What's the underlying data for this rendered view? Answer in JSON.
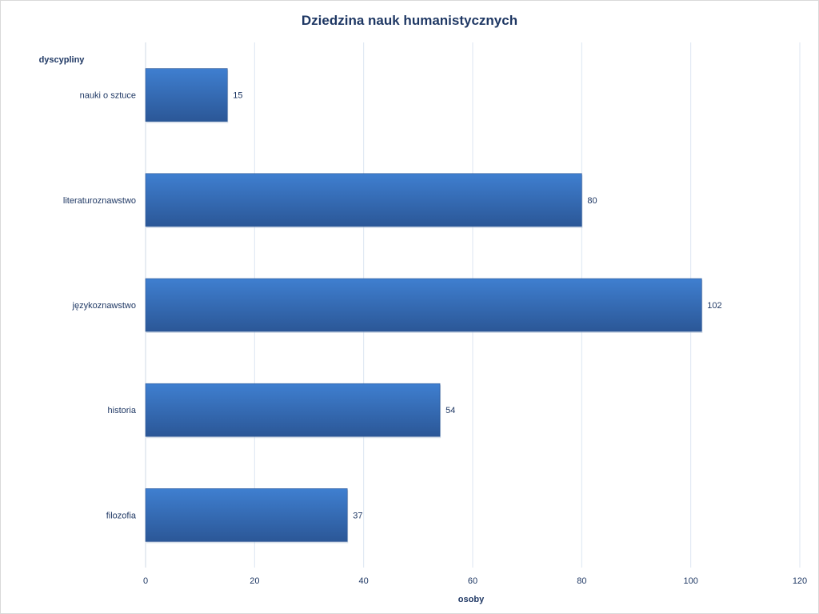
{
  "chart_data": {
    "type": "bar",
    "orientation": "horizontal",
    "title": "Dziedzina nauk humanistycznych",
    "xlabel": "osoby",
    "ylabel": "dyscypliny",
    "categories": [
      "nauki o sztuce",
      "literaturoznawstwo",
      "językoznawstwo",
      "historia",
      "filozofia"
    ],
    "values": [
      15,
      80,
      102,
      54,
      37
    ],
    "xlim": [
      0,
      120
    ],
    "xticks": [
      "0",
      "20",
      "40",
      "60",
      "80",
      "100",
      "120"
    ],
    "grid": true,
    "legend": "none",
    "data_labels": true
  },
  "colors": {
    "title": "#1f3864",
    "text": "#1f3864",
    "bar_top": "#3f7fd0",
    "bar_bottom": "#2b5797",
    "grid": "#dce6f2"
  }
}
